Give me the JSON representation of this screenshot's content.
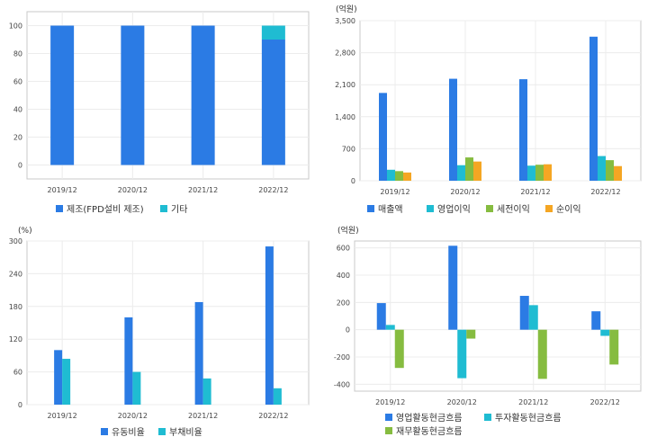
{
  "chart_data": [
    {
      "type": "bar",
      "stacked": true,
      "unit": "",
      "categories": [
        "2019/12",
        "2020/12",
        "2021/12",
        "2022/12"
      ],
      "series": [
        {
          "name": "제조(FPD설비 제조)",
          "color": "#2B7BE4",
          "values": [
            100,
            100,
            100,
            90
          ]
        },
        {
          "name": "기타",
          "color": "#1FBCD2",
          "values": [
            0,
            0,
            0,
            10
          ]
        }
      ],
      "ylim": [
        -10,
        110
      ],
      "yticks": [
        0,
        20,
        40,
        60,
        80,
        100
      ],
      "grid": true,
      "legend": "bottom"
    },
    {
      "type": "bar",
      "unit": "(억원)",
      "categories": [
        "2019/12",
        "2020/12",
        "2021/12",
        "2022/12"
      ],
      "series": [
        {
          "name": "매출액",
          "color": "#2B7BE4",
          "values": [
            1920,
            2230,
            2220,
            3150
          ]
        },
        {
          "name": "영업이익",
          "color": "#1FBCD2",
          "values": [
            240,
            340,
            330,
            540
          ]
        },
        {
          "name": "세전이익",
          "color": "#86BC40",
          "values": [
            210,
            510,
            350,
            450
          ]
        },
        {
          "name": "순이익",
          "color": "#F5A623",
          "values": [
            180,
            420,
            360,
            320
          ]
        }
      ],
      "ylim": [
        0,
        3500
      ],
      "yticks": [
        0,
        700,
        1400,
        2100,
        2800,
        3500
      ],
      "yticklabels": [
        "0",
        "700",
        "1,400",
        "2,100",
        "2,800",
        "3,500"
      ],
      "grid": true,
      "legend": "bottom"
    },
    {
      "type": "bar",
      "unit": "(%)",
      "categories": [
        "2019/12",
        "2020/12",
        "2021/12",
        "2022/12"
      ],
      "series": [
        {
          "name": "유동비율",
          "color": "#2B7BE4",
          "values": [
            100,
            160,
            188,
            290
          ]
        },
        {
          "name": "부채비율",
          "color": "#1FBCD2",
          "values": [
            84,
            60,
            48,
            30
          ]
        }
      ],
      "ylim": [
        0,
        300
      ],
      "yticks": [
        0,
        60,
        120,
        180,
        240,
        300
      ],
      "grid": true,
      "legend": "bottom"
    },
    {
      "type": "bar",
      "unit": "(억원)",
      "categories": [
        "2019/12",
        "2020/12",
        "2021/12",
        "2022/12"
      ],
      "series": [
        {
          "name": "영업활동현금흐름",
          "color": "#2B7BE4",
          "values": [
            195,
            615,
            248,
            135
          ]
        },
        {
          "name": "투자활동현금흐름",
          "color": "#1FBCD2",
          "values": [
            35,
            -355,
            180,
            -45
          ]
        },
        {
          "name": "재무활동현금흐름",
          "color": "#86BC40",
          "values": [
            -280,
            -65,
            -360,
            -255
          ]
        }
      ],
      "ylim": [
        -450,
        650
      ],
      "yticks": [
        -400,
        -200,
        0,
        200,
        400,
        600
      ],
      "grid": true,
      "legend": "bottom"
    }
  ]
}
